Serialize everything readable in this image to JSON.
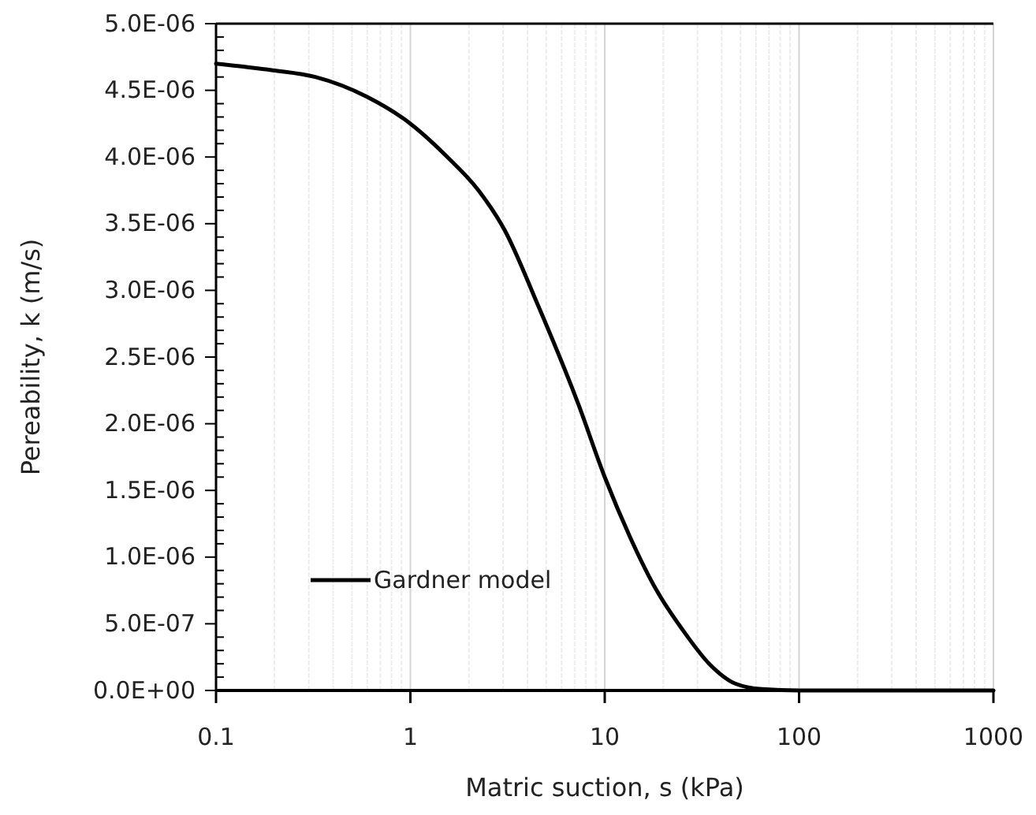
{
  "chart_data": {
    "type": "line",
    "xlabel": "Matric suction, s (kPa)",
    "ylabel": "Pereability, k (m/s)",
    "log": "x",
    "xlim": [
      0.1,
      1000
    ],
    "xticks": [
      0.1,
      1,
      10,
      100,
      1000
    ],
    "ylim": [
      0,
      5e-06
    ],
    "yticks": [
      {
        "value": 0,
        "label": "0.0E+00"
      },
      {
        "value": 5e-07,
        "label": "5.0E-07"
      },
      {
        "value": 1e-06,
        "label": "1.0E-06"
      },
      {
        "value": 1.5e-06,
        "label": "1.5E-06"
      },
      {
        "value": 2e-06,
        "label": "2.0E-06"
      },
      {
        "value": 2.5e-06,
        "label": "2.5E-06"
      },
      {
        "value": 3e-06,
        "label": "3.0E-06"
      },
      {
        "value": 3.5e-06,
        "label": "3.5E-06"
      },
      {
        "value": 4e-06,
        "label": "4.0E-06"
      },
      {
        "value": 4.5e-06,
        "label": "4.5E-06"
      },
      {
        "value": 5e-06,
        "label": "5.0E-06"
      }
    ],
    "grid": "x",
    "legend": "bottom left",
    "marker": "none",
    "line_style": "solid",
    "series": [
      {
        "name": "Gardner model",
        "color": "#000000",
        "x": [
          0.1,
          0.196,
          0.324,
          0.6,
          1,
          1.55,
          2.24,
          3.06,
          4.5,
          7.3,
          10,
          13.5,
          18.5,
          25.3,
          34.5,
          47.2,
          64.5,
          100,
          1000
        ],
        "values": [
          4.7e-06,
          4.65e-06,
          4.6e-06,
          4.45e-06,
          4.25e-06,
          4e-06,
          3.75e-06,
          3.45e-06,
          2.9e-06,
          2.15e-06,
          1.6e-06,
          1.15e-06,
          7.5e-07,
          4.5e-07,
          2e-07,
          5e-08,
          1e-08,
          0,
          0
        ]
      }
    ]
  }
}
